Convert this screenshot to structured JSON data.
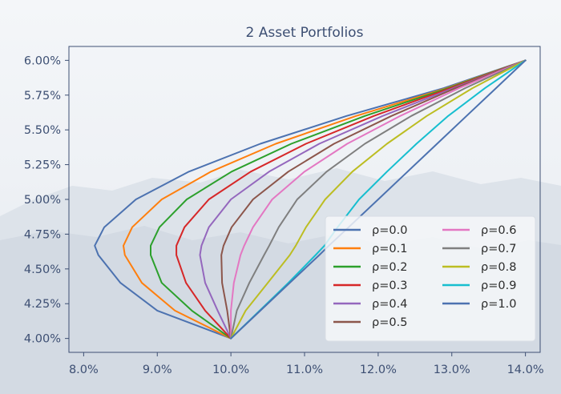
{
  "chart_data": {
    "type": "line",
    "title": "2 Asset Portfolios",
    "xlabel": "",
    "ylabel": "",
    "xlim": [
      7.8,
      14.2
    ],
    "ylim": [
      3.9,
      6.1
    ],
    "x_ticks": [
      "8.0%",
      "9.0%",
      "10.0%",
      "11.0%",
      "12.0%",
      "13.0%",
      "14.0%"
    ],
    "y_ticks": [
      "4.00%",
      "4.25%",
      "4.50%",
      "4.75%",
      "5.00%",
      "5.25%",
      "5.50%",
      "5.75%",
      "6.00%"
    ],
    "x_tick_values": [
      8,
      9,
      10,
      11,
      12,
      13,
      14
    ],
    "y_tick_values": [
      4.0,
      4.25,
      4.5,
      4.75,
      5.0,
      5.25,
      5.5,
      5.75,
      6.0
    ],
    "grid": false,
    "legend_placement": "lower-right",
    "legend_columns": 2,
    "series": [
      {
        "name": "ρ=0.0",
        "color": "#4c72b0",
        "x": [
          10.0,
          9.0,
          8.5,
          8.2,
          8.15,
          8.28,
          8.71,
          9.43,
          10.4,
          11.57,
          12.89,
          14.0
        ],
        "y": [
          4.0,
          4.2,
          4.4,
          4.6,
          4.667,
          4.8,
          5.0,
          5.2,
          5.4,
          5.6,
          5.8,
          6.0
        ]
      },
      {
        "name": "ρ=0.1",
        "color": "#ff7f0e",
        "x": [
          10.0,
          9.24,
          8.79,
          8.56,
          8.54,
          8.66,
          9.06,
          9.73,
          10.61,
          11.7,
          12.93,
          14.0
        ],
        "y": [
          4.0,
          4.2,
          4.4,
          4.6,
          4.667,
          4.8,
          5.0,
          5.2,
          5.4,
          5.6,
          5.8,
          6.0
        ]
      },
      {
        "name": "ρ=0.2",
        "color": "#2ca02c",
        "x": [
          10.0,
          9.47,
          9.06,
          8.91,
          8.91,
          9.03,
          9.4,
          10.01,
          10.82,
          11.82,
          12.95,
          14.0
        ],
        "y": [
          4.0,
          4.2,
          4.4,
          4.6,
          4.667,
          4.8,
          5.0,
          5.2,
          5.4,
          5.6,
          5.8,
          6.0
        ]
      },
      {
        "name": "ρ=0.3",
        "color": "#d62728",
        "x": [
          10.0,
          9.65,
          9.39,
          9.26,
          9.26,
          9.37,
          9.7,
          10.27,
          11.02,
          11.94,
          12.98,
          14.0
        ],
        "y": [
          4.0,
          4.2,
          4.4,
          4.6,
          4.667,
          4.8,
          5.0,
          5.2,
          5.4,
          5.6,
          5.8,
          6.0
        ]
      },
      {
        "name": "ρ=0.4",
        "color": "#9467bd",
        "x": [
          10.0,
          9.82,
          9.65,
          9.58,
          9.6,
          9.7,
          10.0,
          10.52,
          11.2,
          12.06,
          13.02,
          14.0
        ],
        "y": [
          4.0,
          4.2,
          4.4,
          4.6,
          4.667,
          4.8,
          5.0,
          5.2,
          5.4,
          5.6,
          5.8,
          6.0
        ]
      },
      {
        "name": "ρ=0.5",
        "color": "#8c564b",
        "x": [
          10.0,
          9.95,
          9.88,
          9.87,
          9.9,
          10.01,
          10.3,
          10.78,
          11.4,
          12.18,
          13.05,
          14.0
        ],
        "y": [
          4.0,
          4.2,
          4.4,
          4.6,
          4.667,
          4.8,
          5.0,
          5.2,
          5.4,
          5.6,
          5.8,
          6.0
        ]
      },
      {
        "name": "ρ=0.6",
        "color": "#e377c2",
        "x": [
          10.0,
          10.0,
          10.04,
          10.13,
          10.18,
          10.3,
          10.56,
          11.0,
          11.58,
          12.3,
          13.1,
          14.0
        ],
        "y": [
          4.0,
          4.2,
          4.4,
          4.6,
          4.667,
          4.8,
          5.0,
          5.2,
          5.4,
          5.6,
          5.8,
          6.0
        ]
      },
      {
        "name": "ρ=0.7",
        "color": "#7f7f7f",
        "x": [
          10.0,
          10.08,
          10.25,
          10.45,
          10.52,
          10.65,
          10.9,
          11.3,
          11.82,
          12.45,
          13.18,
          14.0
        ],
        "y": [
          4.0,
          4.2,
          4.4,
          4.6,
          4.667,
          4.8,
          5.0,
          5.2,
          5.4,
          5.6,
          5.8,
          6.0
        ]
      },
      {
        "name": "ρ=0.8",
        "color": "#bcbd22",
        "x": [
          10.0,
          10.2,
          10.5,
          10.8,
          10.88,
          11.02,
          11.28,
          11.65,
          12.12,
          12.66,
          13.28,
          14.0
        ],
        "y": [
          4.0,
          4.2,
          4.4,
          4.6,
          4.667,
          4.8,
          5.0,
          5.2,
          5.4,
          5.6,
          5.8,
          6.0
        ]
      },
      {
        "name": "ρ=0.9",
        "color": "#17becf",
        "x": [
          10.0,
          10.39,
          10.78,
          11.15,
          11.27,
          11.45,
          11.74,
          12.12,
          12.52,
          12.95,
          13.45,
          14.0
        ],
        "y": [
          4.0,
          4.2,
          4.4,
          4.6,
          4.667,
          4.8,
          5.0,
          5.2,
          5.4,
          5.6,
          5.8,
          6.0
        ]
      },
      {
        "name": "ρ=1.0",
        "color": "#4c72b0",
        "x": [
          10.0,
          10.4,
          10.8,
          11.2,
          11.33,
          11.6,
          12.0,
          12.4,
          12.8,
          13.2,
          13.6,
          14.0
        ],
        "y": [
          4.0,
          4.2,
          4.4,
          4.6,
          4.667,
          4.8,
          5.0,
          5.2,
          5.4,
          5.6,
          5.8,
          6.0
        ]
      }
    ]
  },
  "colors": {
    "axis": "#3d4f73",
    "background_sky": "#f2f4f7",
    "background_mountain": "#c9d1dc"
  }
}
